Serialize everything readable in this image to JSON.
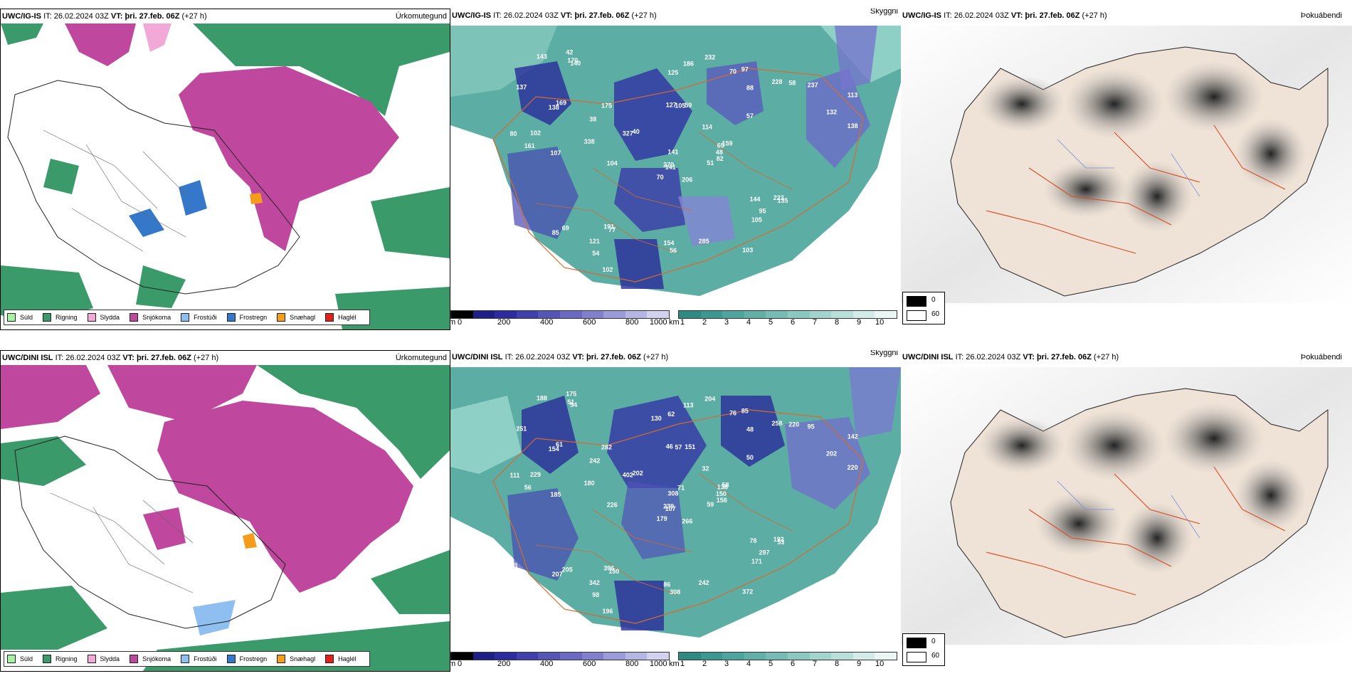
{
  "panels": {
    "top_left": {
      "model": "UWC/IG-IS",
      "it_label": "IT:",
      "it_value": "26.02.2024 03Z",
      "vt_label": "VT:",
      "vt_value": "þri. 27.feb. 06Z",
      "lead": "(+27 h)",
      "title": "Úrkomutegund"
    },
    "top_mid": {
      "model": "UWC/IG-IS",
      "it_label": "IT:",
      "it_value": "26.02.2024 03Z",
      "vt_label": "VT:",
      "vt_value": "þri. 27.feb. 06Z",
      "lead": "(+27 h)",
      "title": "Skyggni"
    },
    "top_right": {
      "model": "UWC/IG-IS",
      "it_label": "IT:",
      "it_value": "26.02.2024 03Z",
      "vt_label": "VT:",
      "vt_value": "þri. 27.feb. 06Z",
      "lead": "(+27 h)",
      "title": "Þokuábendi"
    },
    "bot_left": {
      "model": "UWC/DINI ISL",
      "it_label": "IT:",
      "it_value": "26.02.2024 03Z",
      "vt_label": "VT:",
      "vt_value": "þri. 27.feb. 06Z",
      "lead": "(+27 h)",
      "title": "Úrkomutegund"
    },
    "bot_mid": {
      "model": "UWC/DINI ISL",
      "it_label": "IT:",
      "it_value": "26.02.2024 03Z",
      "vt_label": "VT:",
      "vt_value": "þri. 27.feb. 06Z",
      "lead": "(+27 h)",
      "title": "Skyggni"
    },
    "bot_right": {
      "model": "UWC/DINI ISL",
      "it_label": "IT:",
      "it_value": "26.02.2024 03Z",
      "vt_label": "VT:",
      "vt_value": "þri. 27.feb. 06Z",
      "lead": "(+27 h)",
      "title": "Þokuábendi"
    }
  },
  "precip_legend": [
    {
      "label": "Súld",
      "color": "#a6f2a0"
    },
    {
      "label": "Rigning",
      "color": "#3a9a6a"
    },
    {
      "label": "Slydda",
      "color": "#f2a9d8"
    },
    {
      "label": "Snjókoma",
      "color": "#c0479e"
    },
    {
      "label": "Frostúði",
      "color": "#8fbff0"
    },
    {
      "label": "Frostregn",
      "color": "#3577c9"
    },
    {
      "label": "Snæhagl",
      "color": "#f59c1d"
    },
    {
      "label": "Haglél",
      "color": "#e0211c"
    }
  ],
  "vis_scale_m": {
    "unit": "m",
    "ticks": [
      "0",
      "200",
      "400",
      "600",
      "800",
      "1000"
    ]
  },
  "vis_scale_km": {
    "unit": "km",
    "ticks": [
      "1",
      "2",
      "3",
      "4",
      "5",
      "6",
      "7",
      "8",
      "9",
      "10"
    ]
  },
  "fog_legend": {
    "low": "0",
    "high": "60"
  },
  "vis_labels_top": [
    "206",
    "138",
    "141",
    "212",
    "65",
    "77",
    "97",
    "59",
    "88",
    "51",
    "140",
    "152",
    "107",
    "113",
    "70",
    "57",
    "82",
    "127",
    "114",
    "69",
    "40",
    "35",
    "54",
    "105",
    "159",
    "135",
    "169",
    "125",
    "161",
    "144",
    "138",
    "270",
    "154",
    "141",
    "175",
    "228",
    "191",
    "305",
    "284",
    "223",
    "232",
    "327",
    "338",
    "105",
    "102",
    "80",
    "48",
    "54",
    "56",
    "82",
    "85",
    "132",
    "137",
    "95",
    "103",
    "121",
    "170",
    "143",
    "285",
    "237",
    "186",
    "104",
    "102",
    "38",
    "58",
    "42",
    "70"
  ],
  "vis_labels_bot": [
    "266",
    "154",
    "107",
    "344",
    "138",
    "150",
    "85",
    "151",
    "48",
    "59",
    "54",
    "176",
    "185",
    "142",
    "179",
    "50",
    "46",
    "46",
    "32",
    "205",
    "202",
    "83",
    "98",
    "57",
    "58",
    "53",
    "61",
    "62",
    "56",
    "78",
    "220",
    "239",
    "86",
    "308",
    "282",
    "258",
    "396",
    "103",
    "234",
    "192",
    "204",
    "402",
    "180",
    "171",
    "196",
    "111",
    "150",
    "182",
    "308",
    "158",
    "207",
    "202",
    "251",
    "297",
    "372",
    "342",
    "51",
    "188",
    "242",
    "95",
    "113",
    "226",
    "229",
    "242",
    "220",
    "175",
    "76",
    "130",
    "71",
    "83"
  ]
}
